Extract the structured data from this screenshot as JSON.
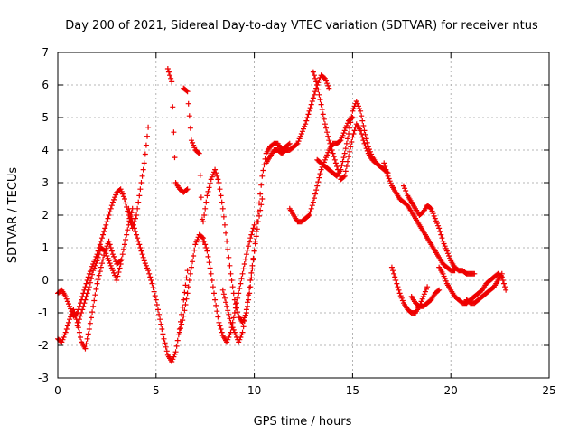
{
  "chart_data": {
    "type": "scatter",
    "title": "Day 200 of 2021, Sidereal Day-to-day VTEC variation (SDTVAR) for receiver ntus",
    "xlabel": "GPS time / hours",
    "ylabel": "SDTVAR / TECUs",
    "xlim": [
      0,
      25
    ],
    "ylim": [
      -3,
      7
    ],
    "xticks": [
      0,
      5,
      10,
      15,
      20,
      25
    ],
    "yticks": [
      -3,
      -2,
      -1,
      0,
      1,
      2,
      3,
      4,
      5,
      6,
      7
    ],
    "grid": true,
    "marker": "+",
    "color": "#ee0000",
    "series": [
      {
        "name": "trace-1",
        "x": [
          0.0,
          0.2,
          0.4,
          0.6,
          0.8,
          1.0,
          1.2,
          1.4,
          1.6,
          1.8,
          2.0,
          2.2,
          2.4,
          2.6,
          2.8,
          3.0,
          3.2,
          3.4,
          3.6,
          3.8,
          4.0,
          4.2,
          4.4,
          4.6
        ],
        "y": [
          -0.4,
          -0.3,
          -0.5,
          -0.8,
          -1.1,
          -1.0,
          -0.6,
          -0.2,
          0.2,
          0.5,
          0.8,
          1.2,
          1.6,
          2.0,
          2.4,
          2.7,
          2.8,
          2.5,
          2.0,
          1.6,
          2.0,
          2.8,
          3.6,
          4.7
        ]
      },
      {
        "name": "trace-2",
        "x": [
          0.0,
          0.2,
          0.4,
          0.6,
          0.8,
          1.0,
          1.2,
          1.4,
          1.6,
          1.8,
          2.0,
          2.2,
          2.4,
          2.6,
          2.8,
          3.0,
          3.2
        ],
        "y": [
          -1.8,
          -1.9,
          -1.6,
          -1.2,
          -0.9,
          -1.3,
          -1.9,
          -2.1,
          -1.5,
          -0.8,
          -0.1,
          0.4,
          0.9,
          1.2,
          0.8,
          0.5,
          0.6
        ]
      },
      {
        "name": "trace-3",
        "x": [
          1.0,
          1.2,
          1.4,
          1.6,
          1.8,
          2.0,
          2.2,
          2.4,
          2.6,
          2.8,
          3.0,
          3.2,
          3.4,
          3.6,
          3.8
        ],
        "y": [
          -1.4,
          -1.0,
          -0.6,
          -0.2,
          0.3,
          0.6,
          1.0,
          0.9,
          0.6,
          0.3,
          0.0,
          0.5,
          1.1,
          1.7,
          2.2
        ]
      },
      {
        "name": "trace-4",
        "x": [
          3.6,
          3.8,
          4.0,
          4.2,
          4.4,
          4.6,
          4.8,
          5.0,
          5.2,
          5.4,
          5.6,
          5.8,
          6.0,
          6.2,
          6.4,
          6.6
        ],
        "y": [
          2.2,
          1.8,
          1.4,
          1.0,
          0.6,
          0.3,
          -0.1,
          -0.6,
          -1.2,
          -1.8,
          -2.3,
          -2.5,
          -2.2,
          -1.5,
          -0.6,
          0.3
        ]
      },
      {
        "name": "trace-5",
        "x": [
          6.2,
          6.4,
          6.6,
          6.8,
          7.0,
          7.2,
          7.4,
          7.6,
          7.8,
          8.0,
          8.2,
          8.4,
          8.6,
          8.8,
          9.0,
          9.2,
          9.4,
          9.6,
          9.8,
          10.0
        ],
        "y": [
          -1.6,
          -1.1,
          -0.4,
          0.4,
          1.1,
          1.4,
          1.3,
          0.9,
          0.2,
          -0.6,
          -1.3,
          -1.7,
          -1.9,
          -1.6,
          -1.0,
          -0.4,
          0.2,
          0.8,
          1.3,
          1.7
        ]
      },
      {
        "name": "trace-6",
        "x": [
          7.4,
          7.6,
          7.8,
          8.0,
          8.2,
          8.4,
          8.6,
          8.8,
          9.0,
          9.2,
          9.4,
          9.6,
          9.8,
          10.0,
          10.2,
          10.4,
          10.6,
          10.8,
          11.0,
          11.2,
          11.4,
          11.6,
          11.8
        ],
        "y": [
          1.8,
          2.6,
          3.1,
          3.4,
          3.0,
          2.2,
          1.2,
          0.2,
          -0.6,
          -1.1,
          -1.3,
          -1.0,
          -0.2,
          0.9,
          2.1,
          3.2,
          3.9,
          4.1,
          4.2,
          4.2,
          4.0,
          4.1,
          4.2
        ]
      },
      {
        "name": "trace-7",
        "x": [
          8.4,
          8.6,
          8.8,
          9.0,
          9.2,
          9.4,
          9.6,
          9.8,
          10.0,
          10.2,
          10.4
        ],
        "y": [
          -0.3,
          -0.8,
          -1.3,
          -1.6,
          -1.9,
          -1.6,
          -0.9,
          0.0,
          0.9,
          1.8,
          2.5
        ]
      },
      {
        "name": "trace-8",
        "x": [
          10.6,
          10.8,
          11.0,
          11.2,
          11.4,
          11.6,
          11.8,
          12.0,
          12.2,
          12.4,
          12.6,
          12.8,
          13.0,
          13.2,
          13.4,
          13.6,
          13.8
        ],
        "y": [
          3.6,
          3.8,
          4.0,
          4.0,
          3.9,
          4.0,
          4.0,
          4.1,
          4.2,
          4.5,
          4.8,
          5.2,
          5.6,
          6.0,
          6.3,
          6.2,
          5.9
        ]
      },
      {
        "name": "trace-9",
        "x": [
          11.8,
          12.0,
          12.2,
          12.4,
          12.6,
          12.8,
          13.0,
          13.2,
          13.4,
          13.6,
          13.8,
          14.0,
          14.2,
          14.4,
          14.6,
          14.8,
          15.0
        ],
        "y": [
          2.2,
          2.0,
          1.8,
          1.8,
          1.9,
          2.0,
          2.4,
          2.9,
          3.4,
          3.7,
          4.0,
          4.2,
          4.2,
          4.3,
          4.6,
          4.9,
          5.0
        ]
      },
      {
        "name": "trace-10",
        "x": [
          13.0,
          13.2,
          13.4,
          13.6,
          13.8,
          14.0,
          14.2,
          14.4,
          14.6,
          14.8,
          15.0,
          15.2,
          15.4,
          15.6,
          15.8,
          16.0,
          16.2,
          16.4,
          16.6,
          16.8
        ],
        "y": [
          6.4,
          6.0,
          5.4,
          4.8,
          4.3,
          3.9,
          3.5,
          3.1,
          3.2,
          3.8,
          4.4,
          4.8,
          4.6,
          4.2,
          3.9,
          3.7,
          3.6,
          3.5,
          3.4,
          3.3
        ]
      },
      {
        "name": "trace-11",
        "x": [
          13.2,
          13.4,
          13.6,
          13.8,
          14.0,
          14.2,
          14.4,
          14.6,
          14.8,
          15.0,
          15.2,
          15.4,
          15.6,
          15.8,
          16.0,
          16.2,
          16.4
        ],
        "y": [
          3.7,
          3.6,
          3.5,
          3.4,
          3.3,
          3.2,
          3.4,
          3.9,
          4.5,
          5.2,
          5.5,
          5.2,
          4.6,
          4.1,
          3.8,
          3.6,
          3.5
        ]
      },
      {
        "name": "trace-12",
        "x": [
          16.6,
          16.8,
          17.0,
          17.2,
          17.4,
          17.6,
          17.8,
          18.0,
          18.2,
          18.4,
          18.6,
          18.8,
          19.0,
          19.2,
          19.4,
          19.6,
          19.8,
          20.0,
          20.2
        ],
        "y": [
          3.6,
          3.2,
          2.9,
          2.7,
          2.5,
          2.4,
          2.3,
          2.1,
          1.9,
          1.7,
          1.5,
          1.3,
          1.1,
          0.9,
          0.7,
          0.5,
          0.4,
          0.3,
          0.3
        ]
      },
      {
        "name": "trace-13",
        "x": [
          17.6,
          17.8,
          18.0,
          18.2,
          18.4,
          18.6,
          18.8,
          19.0,
          19.2,
          19.4,
          19.6,
          19.8,
          20.0,
          20.2,
          20.4,
          20.6,
          20.8,
          21.0,
          21.2
        ],
        "y": [
          2.9,
          2.6,
          2.4,
          2.2,
          2.0,
          2.1,
          2.3,
          2.2,
          1.9,
          1.6,
          1.2,
          0.9,
          0.6,
          0.4,
          0.3,
          0.3,
          0.2,
          0.2,
          0.2
        ]
      },
      {
        "name": "trace-14",
        "x": [
          17.0,
          17.2,
          17.4,
          17.6,
          17.8,
          18.0,
          18.2,
          18.4,
          18.6,
          18.8
        ],
        "y": [
          0.4,
          0.0,
          -0.4,
          -0.7,
          -0.9,
          -1.0,
          -1.0,
          -0.8,
          -0.5,
          -0.2
        ]
      },
      {
        "name": "trace-15",
        "x": [
          18.0,
          18.2,
          18.4,
          18.6,
          18.8,
          19.0,
          19.2,
          19.4
        ],
        "y": [
          -0.5,
          -0.7,
          -0.8,
          -0.8,
          -0.7,
          -0.6,
          -0.4,
          -0.3
        ]
      },
      {
        "name": "trace-16",
        "x": [
          19.4,
          19.6,
          19.8,
          20.0,
          20.2,
          20.4,
          20.6,
          20.8,
          21.0,
          21.2,
          21.4,
          21.6,
          21.8,
          22.0,
          22.2,
          22.4,
          22.6,
          22.8
        ],
        "y": [
          0.4,
          0.2,
          -0.1,
          -0.3,
          -0.5,
          -0.6,
          -0.7,
          -0.7,
          -0.6,
          -0.5,
          -0.4,
          -0.3,
          -0.1,
          0.0,
          0.1,
          0.2,
          0.1,
          -0.3
        ]
      },
      {
        "name": "trace-17",
        "x": [
          20.8,
          21.0,
          21.2,
          21.4,
          21.6,
          21.8,
          22.0,
          22.2,
          22.4,
          22.6
        ],
        "y": [
          -0.6,
          -0.7,
          -0.7,
          -0.6,
          -0.5,
          -0.4,
          -0.3,
          -0.2,
          0.0,
          0.2
        ]
      },
      {
        "name": "trace-18",
        "x": [
          5.6,
          5.8,
          6.0,
          6.2,
          6.4,
          6.6
        ],
        "y": [
          6.5,
          6.1,
          3.0,
          2.8,
          2.7,
          2.8
        ]
      },
      {
        "name": "trace-19",
        "x": [
          6.4,
          6.6,
          6.8,
          7.0,
          7.2,
          7.4
        ],
        "y": [
          5.9,
          5.8,
          4.3,
          4.0,
          3.9,
          1.2
        ]
      }
    ]
  }
}
